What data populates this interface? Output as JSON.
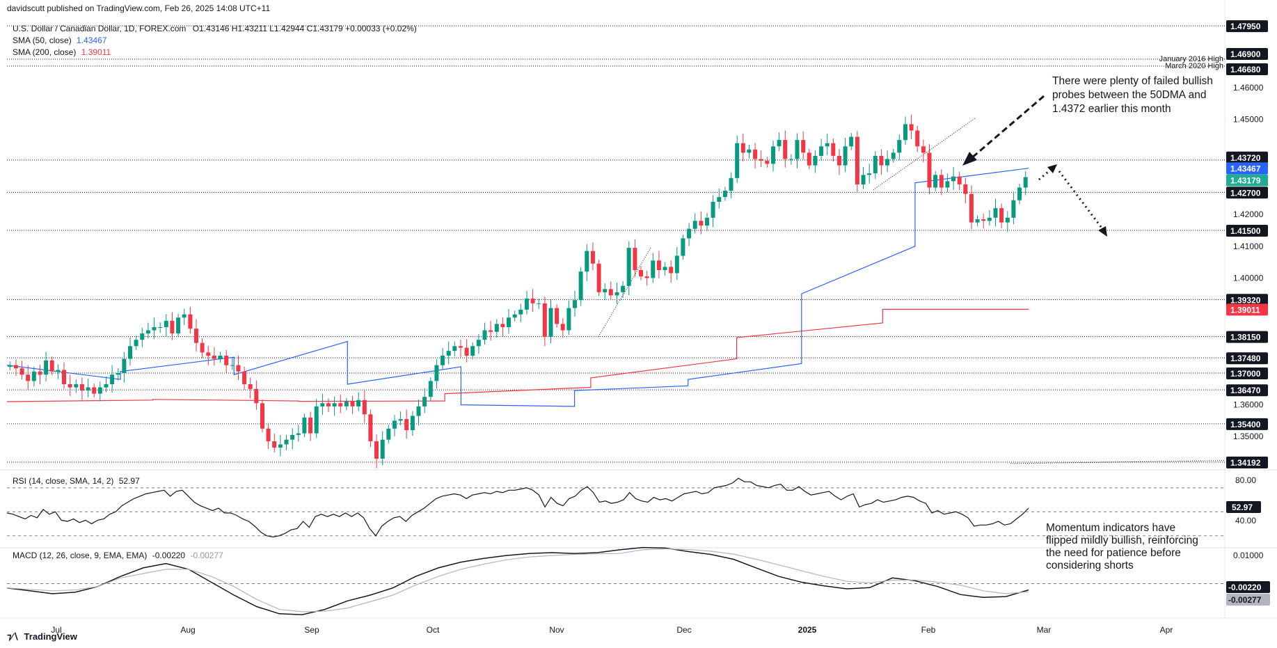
{
  "publisher_line": "davidscutt published on TradingView.com, Feb 26, 2025 14:08 UTC+11",
  "symbol_line": {
    "name": "U.S. Dollar / Canadian Dollar, 1D, FOREX.com",
    "ohlc": "O1.43146 H1.43211 L1.42944 C1.43179 +0.00033 (+0.02%)"
  },
  "sma50": {
    "label": "SMA (50, close)",
    "value": "1.43467",
    "color": "#2962ff"
  },
  "sma200": {
    "label": "SMA (200, close)",
    "value": "1.39011",
    "color": "#f23645"
  },
  "rsi": {
    "label": "RSI (14, close, SMA, 14, 2)",
    "value": "52.97",
    "levels": [
      "80.00",
      "40.00"
    ]
  },
  "macd": {
    "label": "MACD (12, 26, close, 9, EMA, EMA)",
    "macd_value": "-0.00220",
    "signal_value": "-0.00277",
    "ticks": [
      "0.01000",
      "-0.00220",
      "-0.00277"
    ]
  },
  "annotations": {
    "top_note": [
      "There were plenty of failed bullish",
      "probes between the 50DMA and",
      "1.4372 earlier this month"
    ],
    "bottom_note": [
      "Momentum indicators have",
      "flipped mildly bullish, reinforcing",
      "the need for patience before",
      "considering shorts"
    ],
    "level_labels": [
      "January 2016 High",
      "March 2020 High"
    ]
  },
  "x_axis_labels": [
    "Jul",
    "Aug",
    "Sep",
    "Oct",
    "Nov",
    "Dec",
    "2025",
    "Feb",
    "Mar",
    "Apr"
  ],
  "brand": "TradingView",
  "colors": {
    "up": "#089981",
    "down": "#f23645",
    "sma50": "#2962ff",
    "sma200": "#f23645",
    "last_price": "#22ab94",
    "badge": "#131722"
  },
  "chart_data": [
    {
      "type": "candlestick",
      "title": "U.S. Dollar / Canadian Dollar, 1D, FOREX.com",
      "ylim": [
        1.3395,
        1.4815
      ],
      "y_ticks": [
        "1.47950",
        "1.46900",
        "1.46680",
        "1.46000",
        "1.45000",
        "1.43720",
        "1.43467",
        "1.43179",
        "1.42700",
        "1.42000",
        "1.41500",
        "1.41000",
        "1.40000",
        "1.39320",
        "1.39011",
        "1.38150",
        "1.37480",
        "1.37000",
        "1.36470",
        "1.36000",
        "1.35400",
        "1.35000",
        "1.34192"
      ],
      "horizontal_levels": [
        1.4795,
        1.469,
        1.4668,
        1.4372,
        1.427,
        1.415,
        1.3932,
        1.3815,
        1.3748,
        1.37,
        1.3647,
        1.354,
        1.34192
      ],
      "sma50_path": [
        [
          1.3725,
          1.368
        ],
        [
          1.3705,
          1.375
        ],
        [
          1.3695,
          1.38
        ],
        [
          1.3665,
          1.372
        ],
        [
          1.36,
          1.3595
        ],
        [
          1.3645,
          1.366
        ],
        [
          1.368,
          1.373
        ],
        [
          1.395,
          1.41
        ],
        [
          1.43,
          1.4346
        ]
      ],
      "sma200_path": [
        [
          1.361,
          1.3615
        ],
        [
          1.3617,
          1.3612
        ],
        [
          1.3611,
          1.3612
        ],
        [
          1.3635,
          1.3655
        ],
        [
          1.3685,
          1.3745
        ],
        [
          1.3812,
          1.3858
        ],
        [
          1.3901,
          1.3901
        ]
      ],
      "candle_closes": [
        1.3725,
        1.3715,
        1.3695,
        1.3675,
        1.3705,
        1.3695,
        1.374,
        1.3705,
        1.371,
        1.3665,
        1.3655,
        1.3665,
        1.3645,
        1.3655,
        1.3635,
        1.3655,
        1.3665,
        1.3695,
        1.37,
        1.3745,
        1.3785,
        1.3805,
        1.3825,
        1.3835,
        1.3845,
        1.3845,
        1.3865,
        1.3825,
        1.3875,
        1.3885,
        1.384,
        1.3795,
        1.3765,
        1.3755,
        1.3745,
        1.3755,
        1.3725,
        1.3725,
        1.3705,
        1.3665,
        1.365,
        1.3605,
        1.3525,
        1.3485,
        1.3465,
        1.3475,
        1.349,
        1.3505,
        1.351,
        1.356,
        1.351,
        1.3595,
        1.3605,
        1.3595,
        1.3605,
        1.3595,
        1.361,
        1.3595,
        1.3615,
        1.357,
        1.3485,
        1.343,
        1.349,
        1.3525,
        1.355,
        1.3555,
        1.352,
        1.3565,
        1.3595,
        1.3625,
        1.3675,
        1.3725,
        1.3755,
        1.377,
        1.3785,
        1.378,
        1.3755,
        1.3785,
        1.3805,
        1.3835,
        1.383,
        1.3855,
        1.3845,
        1.3875,
        1.3885,
        1.39,
        1.3935,
        1.392,
        1.392,
        1.3815,
        1.3905,
        1.3855,
        1.3835,
        1.3905,
        1.393,
        1.402,
        1.4085,
        1.4045,
        1.3955,
        1.3965,
        1.3945,
        1.3955,
        1.3975,
        1.4095,
        1.4025,
        1.4005,
        1.4,
        1.4055,
        1.4025,
        1.4035,
        1.4015,
        1.407,
        1.4125,
        1.4155,
        1.418,
        1.4165,
        1.419,
        1.424,
        1.4255,
        1.4275,
        1.4315,
        1.4425,
        1.4395,
        1.4405,
        1.4375,
        1.437,
        1.436,
        1.4415,
        1.4435,
        1.4375,
        1.4375,
        1.4435,
        1.4395,
        1.4355,
        1.4385,
        1.4415,
        1.4425,
        1.4385,
        1.4355,
        1.4415,
        1.4445,
        1.4295,
        1.4325,
        1.433,
        1.4385,
        1.4355,
        1.4375,
        1.4395,
        1.4435,
        1.4485,
        1.4465,
        1.4415,
        1.4395,
        1.4285,
        1.4325,
        1.4285,
        1.4305,
        1.432,
        1.4295,
        1.4265,
        1.4175,
        1.4185,
        1.418,
        1.419,
        1.422,
        1.4175,
        1.419,
        1.4245,
        1.4285,
        1.4318
      ]
    },
    {
      "type": "line",
      "title": "RSI (14, close, SMA, 14, 2)",
      "ylim": [
        20,
        85
      ],
      "levels": [
        70,
        50,
        30
      ],
      "series": [
        {
          "name": "RSI",
          "values": [
            49,
            48,
            46,
            44,
            47,
            45,
            52,
            48,
            50,
            43,
            42,
            44,
            41,
            43,
            40,
            43,
            44,
            48,
            50,
            55,
            58,
            61,
            63,
            65,
            66,
            67,
            68,
            63,
            67,
            68,
            63,
            58,
            55,
            53,
            51,
            53,
            49,
            49,
            47,
            44,
            42,
            38,
            33,
            30,
            29,
            30,
            32,
            35,
            36,
            42,
            37,
            46,
            48,
            46,
            48,
            46,
            49,
            46,
            49,
            45,
            36,
            30,
            38,
            42,
            45,
            46,
            42,
            47,
            50,
            53,
            57,
            61,
            63,
            64,
            65,
            64,
            61,
            64,
            65,
            66,
            65,
            67,
            66,
            68,
            68,
            69,
            70,
            68,
            64,
            54,
            62,
            57,
            55,
            61,
            63,
            68,
            71,
            66,
            58,
            59,
            57,
            58,
            60,
            66,
            61,
            59,
            58,
            62,
            60,
            61,
            59,
            62,
            65,
            66,
            67,
            65,
            66,
            70,
            71,
            72,
            74,
            78,
            75,
            75,
            72,
            71,
            70,
            72,
            73,
            68,
            68,
            71,
            67,
            64,
            65,
            66,
            67,
            63,
            60,
            63,
            65,
            54,
            56,
            57,
            60,
            58,
            59,
            60,
            62,
            63,
            62,
            59,
            57,
            49,
            51,
            48,
            49,
            50,
            48,
            45,
            38,
            39,
            39,
            40,
            42,
            39,
            40,
            44,
            48,
            53
          ]
        }
      ]
    },
    {
      "type": "line",
      "title": "MACD (12, 26, close, 9, EMA, EMA)",
      "ylim": [
        -0.012,
        0.0125
      ],
      "series": [
        {
          "name": "MACD",
          "values": [
            -0.0015,
            -0.0025,
            -0.0035,
            -0.003,
            -0.001,
            0.0025,
            0.0055,
            0.007,
            0.005,
            0.0005,
            -0.004,
            -0.008,
            -0.0105,
            -0.0108,
            -0.009,
            -0.006,
            -0.004,
            -0.0015,
            0.0025,
            0.0055,
            0.0075,
            0.0088,
            0.0098,
            0.0105,
            0.0108,
            0.0105,
            0.0108,
            0.0118,
            0.0126,
            0.0124,
            0.0112,
            0.0102,
            0.0085,
            0.0055,
            0.0025,
            0.0005,
            -0.0008,
            -0.0018,
            -0.0014,
            0.002,
            0.001,
            -0.001,
            -0.0038,
            -0.0048,
            -0.0045,
            -0.0022
          ]
        },
        {
          "name": "Signal",
          "values": [
            -0.0015,
            -0.002,
            -0.0025,
            -0.0022,
            -0.001,
            0.002,
            0.0035,
            0.005,
            0.005,
            0.0025,
            -0.001,
            -0.0055,
            -0.009,
            -0.0098,
            -0.0096,
            -0.0085,
            -0.0063,
            -0.004,
            -0.0005,
            0.0025,
            0.005,
            0.0068,
            0.0083,
            0.0093,
            0.0098,
            0.0102,
            0.0104,
            0.0105,
            0.0118,
            0.0121,
            0.0119,
            0.0113,
            0.0103,
            0.0085,
            0.0065,
            0.0045,
            0.0025,
            0.0008,
            0.0003,
            0.0012,
            0.0013,
            0.0005,
            -0.0005,
            -0.0025,
            -0.0035,
            -0.0028
          ]
        }
      ]
    }
  ]
}
